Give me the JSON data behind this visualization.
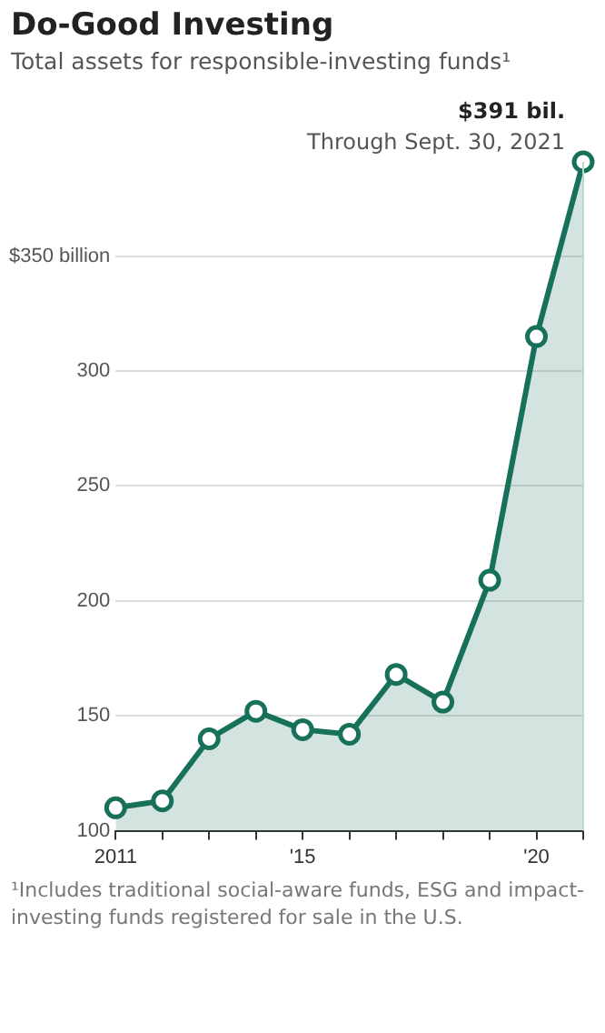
{
  "chart_data": {
    "type": "area",
    "title": "Do-Good Investing",
    "subtitle": "Total assets for responsible-investing funds¹",
    "x": [
      2011,
      2012,
      2013,
      2014,
      2015,
      2016,
      2017,
      2018,
      2019,
      2020,
      2021
    ],
    "series": [
      {
        "color": "#17705a",
        "values": [
          110,
          113,
          140,
          152,
          144,
          142,
          168,
          156,
          209,
          315,
          391
        ]
      }
    ],
    "xlim": [
      2011,
      2021
    ],
    "xticks": [
      2011,
      {
        "value": 2012,
        "label": null
      },
      {
        "value": 2013,
        "label": null
      },
      {
        "value": 2014,
        "label": null
      },
      {
        "value": 2015,
        "label": "'15"
      },
      {
        "value": 2016,
        "label": null
      },
      {
        "value": 2017,
        "label": null
      },
      {
        "value": 2018,
        "label": null
      },
      {
        "value": 2019,
        "label": null
      },
      {
        "value": 2020,
        "label": "'20"
      },
      {
        "value": 2021,
        "label": null
      }
    ],
    "ylim": [
      100,
      391
    ],
    "yticks": [
      100,
      150,
      200,
      250,
      300,
      {
        "value": 350,
        "label": "$350 billion"
      }
    ],
    "grid": "y",
    "marker": "circle",
    "legend": false,
    "annotations": [
      {
        "text": "$391 bil.",
        "x": 2021,
        "y": 391
      },
      {
        "text": "Through Sept. 30, 2021",
        "x": 2021,
        "y": 391
      },
      "¹Includes traditional social-aware funds, ESG and impact-investing funds registered for sale in the U.S."
    ]
  }
}
